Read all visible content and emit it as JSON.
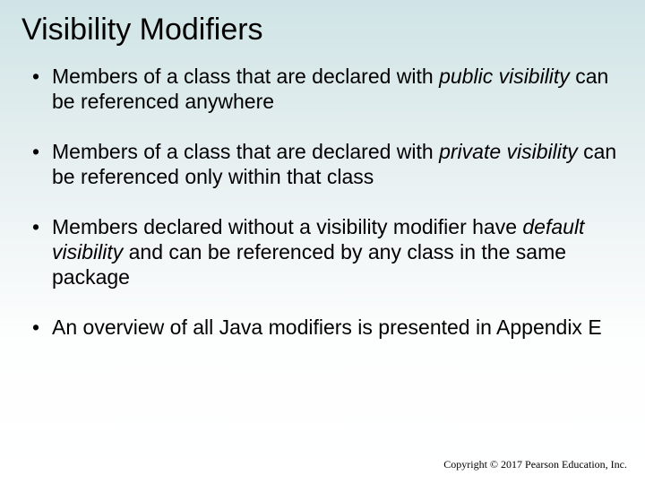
{
  "background": {
    "gradient_top": "#cfe4e6",
    "gradient_mid": "#e8f0f1",
    "gradient_bottom": "#ffffff"
  },
  "title": "Visibility Modifiers",
  "title_fontsize": 34,
  "body_fontsize": 23,
  "text_color": "#000000",
  "bullets": [
    {
      "pre": "Members of a class that are declared with ",
      "em": "public visibility",
      "post": " can be referenced anywhere"
    },
    {
      "pre": "Members of a class that are declared with ",
      "em": "private visibility",
      "post": " can be referenced only within that class"
    },
    {
      "pre": "Members declared without a visibility modifier have ",
      "em": "default visibility",
      "post": " and can be referenced by any class in the same package"
    },
    {
      "pre": "An overview of all Java modifiers is presented in Appendix E",
      "em": "",
      "post": ""
    }
  ],
  "footer": "Copyright © 2017 Pearson Education, Inc."
}
